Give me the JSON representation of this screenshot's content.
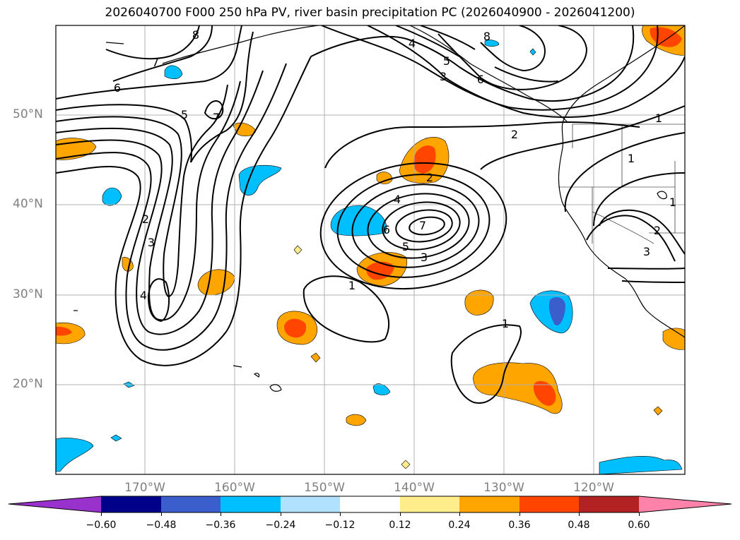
{
  "title": "2026040700 F000 250 hPa PV, river basin precipitation PC (2026040900 - 2026041200)",
  "lat_labels": [
    "50°N",
    "40°N",
    "30°N",
    "20°N"
  ],
  "lon_labels": [
    "170°W",
    "160°W",
    "150°W",
    "140°W",
    "130°W",
    "120°W"
  ],
  "colorbar": {
    "ticks": [
      "−0.60",
      "−0.48",
      "−0.36",
      "−0.24",
      "−0.12",
      "0.12",
      "0.24",
      "0.36",
      "0.48",
      "0.60"
    ],
    "colors": [
      "#9932cc",
      "#00008b",
      "#3a5fcd",
      "#00bfff",
      "#b0e2ff",
      "#ffffff",
      "#ffec8b",
      "#ffa500",
      "#ff4500",
      "#b22222",
      "#ff82ab"
    ]
  },
  "contour_labels": {
    "c1": "1",
    "c2": "2",
    "c3": "3",
    "c4": "4",
    "c5": "5",
    "c6": "6",
    "c7": "7",
    "c8": "8"
  }
}
